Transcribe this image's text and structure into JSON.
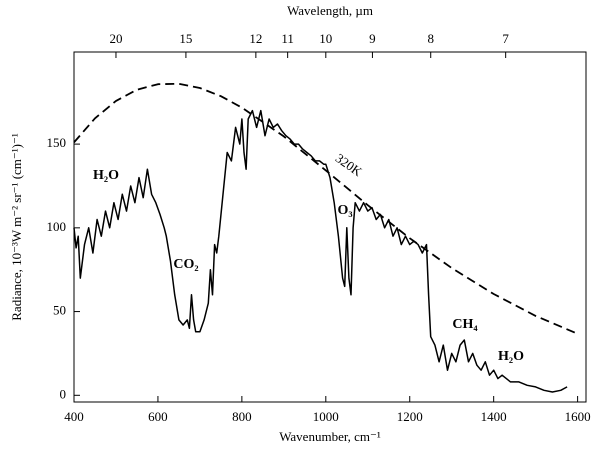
{
  "chart_data": {
    "type": "line",
    "xlabel": "Wavenumber, cm⁻¹",
    "x2label": "Wavelength, µm",
    "ylabel": "Radiance, 10⁻³W m⁻² sr⁻¹ (cm⁻¹)⁻¹",
    "xlim": [
      400,
      1620
    ],
    "ylim": [
      -4,
      205
    ],
    "xticks": [
      400,
      600,
      800,
      1000,
      1200,
      1400,
      1600
    ],
    "x2ticks": [
      20,
      15,
      12,
      11,
      10,
      9,
      8,
      7
    ],
    "x2scale": "reciprocal",
    "yticks": [
      0,
      50,
      100,
      150
    ],
    "grid": false,
    "series": [
      {
        "color": "#000000",
        "dash": false,
        "x": [
          400,
          405,
          410,
          415,
          425,
          435,
          445,
          455,
          465,
          475,
          485,
          495,
          505,
          515,
          525,
          535,
          545,
          555,
          565,
          575,
          585,
          595,
          605,
          615,
          620,
          630,
          640,
          650,
          660,
          670,
          675,
          680,
          685,
          690,
          700,
          710,
          720,
          725,
          730,
          735,
          740,
          745,
          755,
          765,
          775,
          785,
          795,
          800,
          805,
          810,
          815,
          825,
          835,
          845,
          855,
          865,
          875,
          885,
          895,
          905,
          915,
          925,
          935,
          945,
          955,
          965,
          975,
          985,
          995,
          1000,
          1010,
          1020,
          1030,
          1040,
          1045,
          1050,
          1055,
          1060,
          1065,
          1070,
          1080,
          1090,
          1100,
          1110,
          1120,
          1130,
          1140,
          1150,
          1160,
          1170,
          1180,
          1190,
          1200,
          1210,
          1220,
          1230,
          1240,
          1245,
          1250,
          1260,
          1270,
          1280,
          1290,
          1300,
          1310,
          1320,
          1330,
          1340,
          1350,
          1360,
          1370,
          1380,
          1390,
          1400,
          1410,
          1420,
          1440,
          1460,
          1480,
          1500,
          1520,
          1540,
          1560,
          1575
        ],
        "values": [
          100,
          88,
          95,
          70,
          90,
          100,
          85,
          105,
          95,
          110,
          100,
          115,
          105,
          120,
          110,
          125,
          115,
          130,
          118,
          135,
          120,
          115,
          108,
          100,
          95,
          80,
          60,
          45,
          42,
          45,
          40,
          60,
          45,
          38,
          38,
          45,
          55,
          75,
          60,
          90,
          85,
          95,
          120,
          145,
          140,
          160,
          150,
          165,
          145,
          135,
          165,
          170,
          160,
          170,
          155,
          165,
          160,
          162,
          158,
          155,
          153,
          150,
          150,
          147,
          145,
          143,
          140,
          140,
          138,
          138,
          130,
          115,
          95,
          70,
          65,
          100,
          70,
          60,
          100,
          115,
          110,
          115,
          110,
          112,
          105,
          108,
          100,
          105,
          95,
          100,
          90,
          95,
          90,
          92,
          90,
          85,
          90,
          60,
          35,
          30,
          20,
          30,
          15,
          25,
          20,
          30,
          33,
          20,
          25,
          18,
          15,
          20,
          12,
          15,
          10,
          12,
          8,
          8,
          6,
          5,
          3,
          2,
          3,
          5
        ]
      },
      {
        "color": "#000000",
        "dash": true,
        "x": [
          400,
          450,
          500,
          550,
          600,
          650,
          700,
          750,
          800,
          900,
          1000,
          1100,
          1200,
          1300,
          1400,
          1500,
          1600
        ],
        "values": [
          151,
          165.4,
          175.8,
          182.5,
          185.8,
          186.0,
          183.5,
          178.6,
          171.8,
          154.6,
          134.3,
          113.5,
          93.8,
          76.0,
          60.5,
          47.4,
          36.7
        ]
      }
    ],
    "annotations": [
      "H₂O",
      "CO₂",
      "O₃",
      "CH₄",
      "H₂O",
      "320K"
    ]
  }
}
